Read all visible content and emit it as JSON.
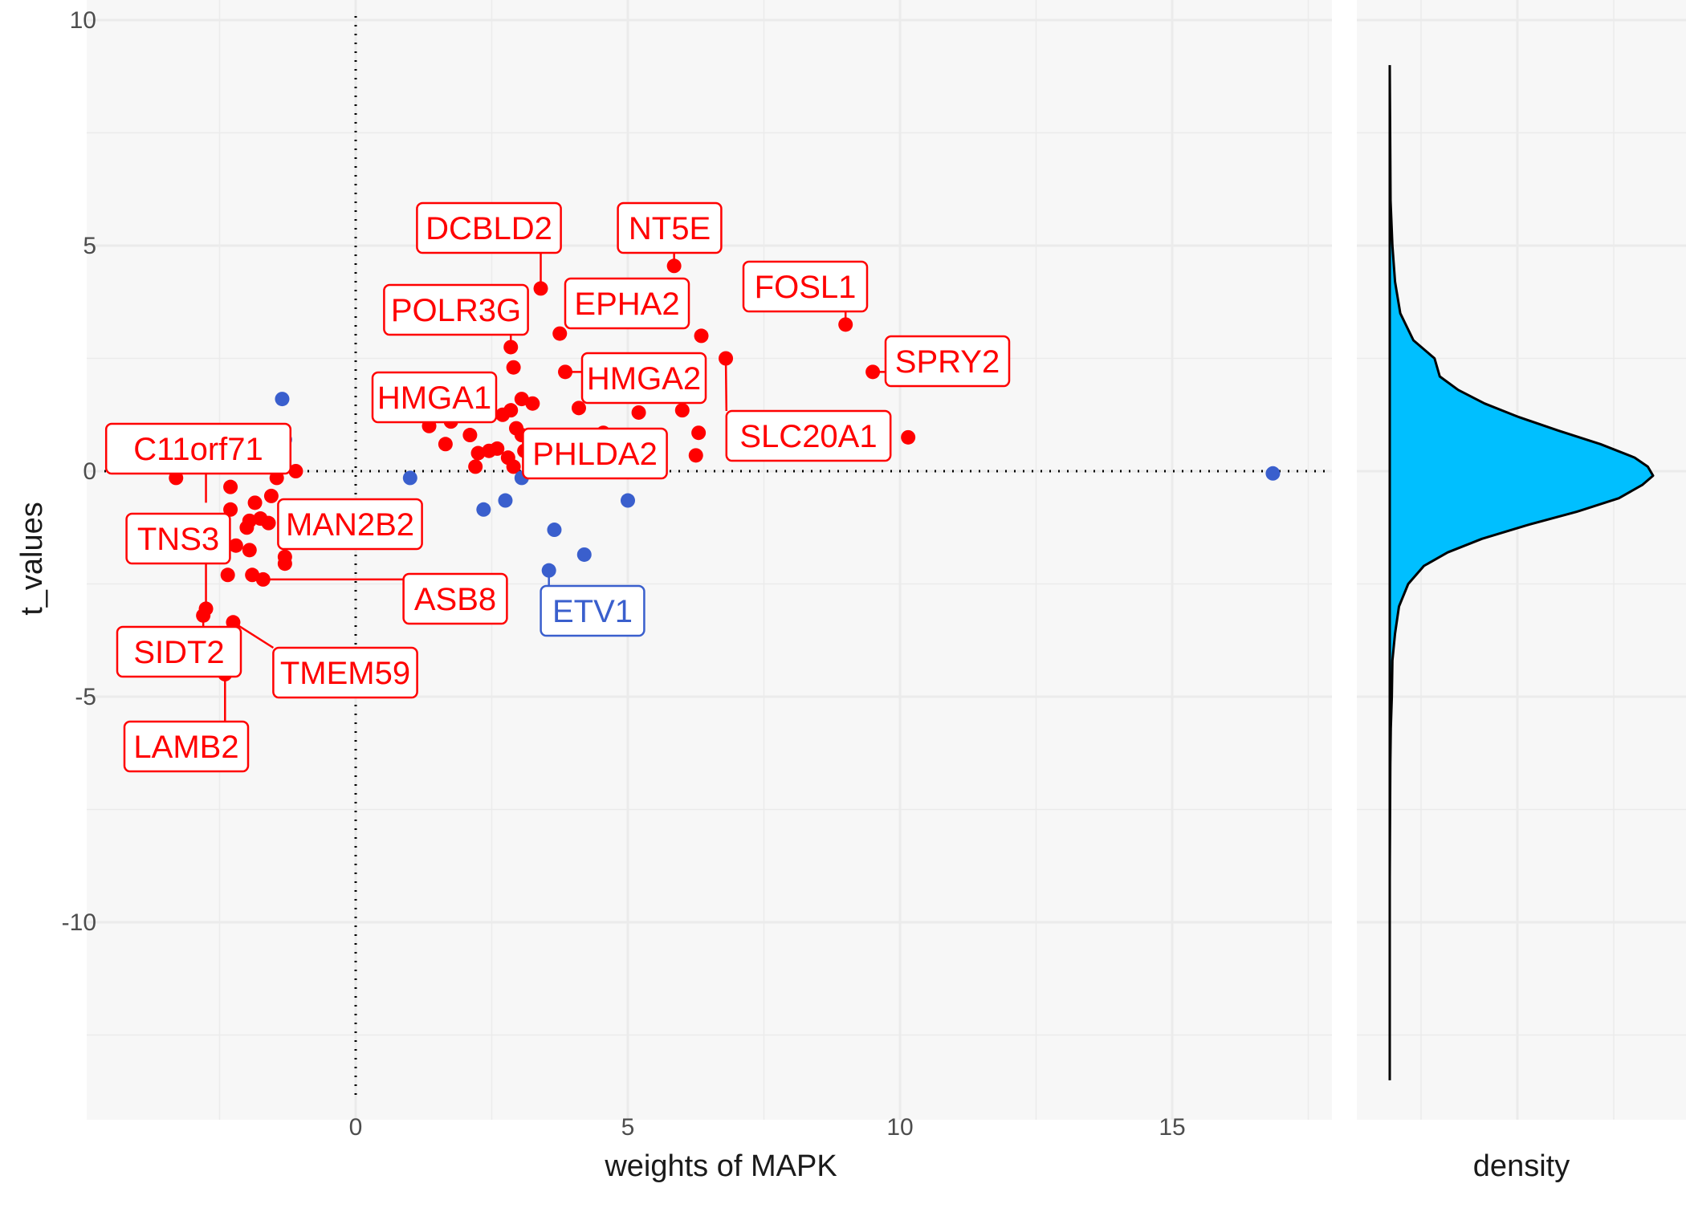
{
  "chart_data": [
    {
      "type": "scatter",
      "xlabel": "weights of MAPK",
      "ylabel": "t_values",
      "xlim": [
        -5,
        18
      ],
      "ylim": [
        -13.5,
        10
      ],
      "x_ticks": [
        0,
        5,
        10,
        15
      ],
      "y_ticks": [
        10,
        5,
        0,
        -5,
        -10
      ],
      "grid": true,
      "reference_lines": {
        "x": 0,
        "y": 0,
        "style": "dotted"
      },
      "colors": {
        "positive": "#ff0000",
        "negative": "#3a5fcd",
        "grid": "#ebebeb",
        "panel": "#f7f7f7"
      },
      "points": [
        {
          "x": 3.4,
          "y": 4.05,
          "group": "positive"
        },
        {
          "x": 5.85,
          "y": 4.55,
          "group": "positive"
        },
        {
          "x": 9.0,
          "y": 3.25,
          "group": "positive"
        },
        {
          "x": 9.5,
          "y": 2.2,
          "group": "positive"
        },
        {
          "x": 10.15,
          "y": 0.75,
          "group": "positive"
        },
        {
          "x": 6.35,
          "y": 3.0,
          "group": "positive"
        },
        {
          "x": 6.8,
          "y": 2.5,
          "group": "positive"
        },
        {
          "x": 3.75,
          "y": 3.05,
          "group": "positive"
        },
        {
          "x": 3.85,
          "y": 2.2,
          "group": "positive"
        },
        {
          "x": 4.1,
          "y": 1.4,
          "group": "positive"
        },
        {
          "x": 5.2,
          "y": 1.3,
          "group": "positive"
        },
        {
          "x": 6.0,
          "y": 1.35,
          "group": "positive"
        },
        {
          "x": 6.3,
          "y": 0.85,
          "group": "positive"
        },
        {
          "x": 6.25,
          "y": 0.35,
          "group": "positive"
        },
        {
          "x": 4.55,
          "y": 0.85,
          "group": "positive"
        },
        {
          "x": 2.85,
          "y": 2.75,
          "group": "positive"
        },
        {
          "x": 2.9,
          "y": 2.3,
          "group": "positive"
        },
        {
          "x": 3.05,
          "y": 1.6,
          "group": "positive"
        },
        {
          "x": 3.25,
          "y": 1.5,
          "group": "positive"
        },
        {
          "x": 2.85,
          "y": 1.35,
          "group": "positive"
        },
        {
          "x": 2.7,
          "y": 1.25,
          "group": "positive"
        },
        {
          "x": 2.95,
          "y": 0.95,
          "group": "positive"
        },
        {
          "x": 3.05,
          "y": 0.8,
          "group": "positive"
        },
        {
          "x": 3.1,
          "y": 0.45,
          "group": "positive"
        },
        {
          "x": 2.6,
          "y": 0.5,
          "group": "positive"
        },
        {
          "x": 2.45,
          "y": 0.45,
          "group": "positive"
        },
        {
          "x": 2.8,
          "y": 0.3,
          "group": "positive"
        },
        {
          "x": 2.9,
          "y": 0.1,
          "group": "positive"
        },
        {
          "x": 2.25,
          "y": 0.4,
          "group": "positive"
        },
        {
          "x": 2.2,
          "y": 0.1,
          "group": "positive"
        },
        {
          "x": 2.1,
          "y": 0.8,
          "group": "positive"
        },
        {
          "x": 1.75,
          "y": 1.1,
          "group": "positive"
        },
        {
          "x": 1.65,
          "y": 0.6,
          "group": "positive"
        },
        {
          "x": 1.35,
          "y": 1.0,
          "group": "positive"
        },
        {
          "x": -3.3,
          "y": -0.15,
          "group": "positive"
        },
        {
          "x": -2.3,
          "y": -0.35,
          "group": "positive"
        },
        {
          "x": -2.3,
          "y": -0.85,
          "group": "positive"
        },
        {
          "x": -1.85,
          "y": -0.7,
          "group": "positive"
        },
        {
          "x": -1.55,
          "y": -0.55,
          "group": "positive"
        },
        {
          "x": -1.45,
          "y": -0.15,
          "group": "positive"
        },
        {
          "x": -1.1,
          "y": 0.0,
          "group": "positive"
        },
        {
          "x": -1.95,
          "y": -1.1,
          "group": "positive"
        },
        {
          "x": -2.0,
          "y": -1.25,
          "group": "positive"
        },
        {
          "x": -1.75,
          "y": -1.05,
          "group": "positive"
        },
        {
          "x": -1.6,
          "y": -1.15,
          "group": "positive"
        },
        {
          "x": -2.2,
          "y": -1.65,
          "group": "positive"
        },
        {
          "x": -1.95,
          "y": -1.75,
          "group": "positive"
        },
        {
          "x": -1.3,
          "y": -1.9,
          "group": "positive"
        },
        {
          "x": -1.3,
          "y": -2.05,
          "group": "positive"
        },
        {
          "x": -2.35,
          "y": -2.3,
          "group": "positive"
        },
        {
          "x": -1.9,
          "y": -2.3,
          "group": "positive"
        },
        {
          "x": -1.7,
          "y": -2.4,
          "group": "positive"
        },
        {
          "x": -2.75,
          "y": -3.05,
          "group": "positive"
        },
        {
          "x": -2.8,
          "y": -3.2,
          "group": "positive"
        },
        {
          "x": -2.25,
          "y": -3.35,
          "group": "positive"
        },
        {
          "x": -2.4,
          "y": -4.5,
          "group": "positive"
        },
        {
          "x": -1.35,
          "y": 1.6,
          "group": "negative"
        },
        {
          "x": -1.3,
          "y": 0.7,
          "group": "negative"
        },
        {
          "x": -1.35,
          "y": 0.1,
          "group": "negative"
        },
        {
          "x": 1.0,
          "y": -0.15,
          "group": "negative"
        },
        {
          "x": 2.35,
          "y": -0.85,
          "group": "negative"
        },
        {
          "x": 2.75,
          "y": -0.65,
          "group": "negative"
        },
        {
          "x": 3.05,
          "y": -0.15,
          "group": "negative"
        },
        {
          "x": 3.65,
          "y": -1.3,
          "group": "negative"
        },
        {
          "x": 4.2,
          "y": -1.85,
          "group": "negative"
        },
        {
          "x": 3.55,
          "y": -2.2,
          "group": "negative"
        },
        {
          "x": 5.0,
          "y": -0.65,
          "group": "negative"
        },
        {
          "x": 16.85,
          "y": -0.05,
          "group": "negative"
        }
      ],
      "annotations": [
        {
          "label": "DCBLD2",
          "x": 3.4,
          "y": 4.05,
          "group": "positive"
        },
        {
          "label": "NT5E",
          "x": 5.85,
          "y": 4.55,
          "group": "positive"
        },
        {
          "label": "FOSL1",
          "x": 9.0,
          "y": 3.25,
          "group": "positive"
        },
        {
          "label": "EPHA2",
          "x": 3.75,
          "y": 3.05,
          "group": "positive"
        },
        {
          "label": "POLR3G",
          "x": 2.85,
          "y": 2.75,
          "group": "positive"
        },
        {
          "label": "SPRY2",
          "x": 9.5,
          "y": 2.2,
          "group": "positive"
        },
        {
          "label": "HMGA2",
          "x": 3.85,
          "y": 2.2,
          "group": "positive"
        },
        {
          "label": "HMGA1",
          "x": 2.7,
          "y": 1.25,
          "group": "positive"
        },
        {
          "label": "SLC20A1",
          "x": 6.8,
          "y": 2.5,
          "group": "positive"
        },
        {
          "label": "PHLDA2",
          "x": 4.55,
          "y": 0.85,
          "group": "positive"
        },
        {
          "label": "C11orf71",
          "x": -2.75,
          "y": -0.7,
          "group": "positive"
        },
        {
          "label": "MAN2B2",
          "x": -1.45,
          "y": -1.7,
          "group": "positive"
        },
        {
          "label": "TNS3",
          "x": -2.75,
          "y": -3.05,
          "group": "positive"
        },
        {
          "label": "ASB8",
          "x": -1.7,
          "y": -2.4,
          "group": "positive"
        },
        {
          "label": "SIDT2",
          "x": -2.8,
          "y": -3.2,
          "group": "positive"
        },
        {
          "label": "TMEM59",
          "x": -2.25,
          "y": -3.35,
          "group": "positive"
        },
        {
          "label": "LAMB2",
          "x": -2.4,
          "y": -4.5,
          "group": "positive"
        },
        {
          "label": "ETV1",
          "x": 3.55,
          "y": -2.2,
          "group": "negative"
        }
      ]
    },
    {
      "type": "area",
      "xlabel": "density",
      "orientation": "vertical",
      "ylim": [
        -13.5,
        10
      ],
      "colors": {
        "fill": "#00bfff",
        "outline": "#000000"
      },
      "y": [
        9.0,
        6.0,
        5.0,
        4.2,
        3.5,
        2.9,
        2.5,
        2.1,
        1.8,
        1.5,
        1.2,
        0.9,
        0.6,
        0.3,
        0.1,
        -0.1,
        -0.3,
        -0.6,
        -0.9,
        -1.2,
        -1.5,
        -1.8,
        -2.1,
        -2.5,
        -3.0,
        -3.6,
        -4.2,
        -5.0,
        -5.7,
        -6.5,
        -9.0,
        -13.5
      ],
      "density": [
        0.0,
        0.003,
        0.01,
        0.02,
        0.04,
        0.09,
        0.17,
        0.19,
        0.26,
        0.36,
        0.49,
        0.64,
        0.8,
        0.93,
        0.98,
        1.0,
        0.96,
        0.87,
        0.71,
        0.52,
        0.35,
        0.22,
        0.13,
        0.07,
        0.035,
        0.02,
        0.01,
        0.008,
        0.004,
        0.002,
        0.0,
        0.0
      ]
    }
  ]
}
